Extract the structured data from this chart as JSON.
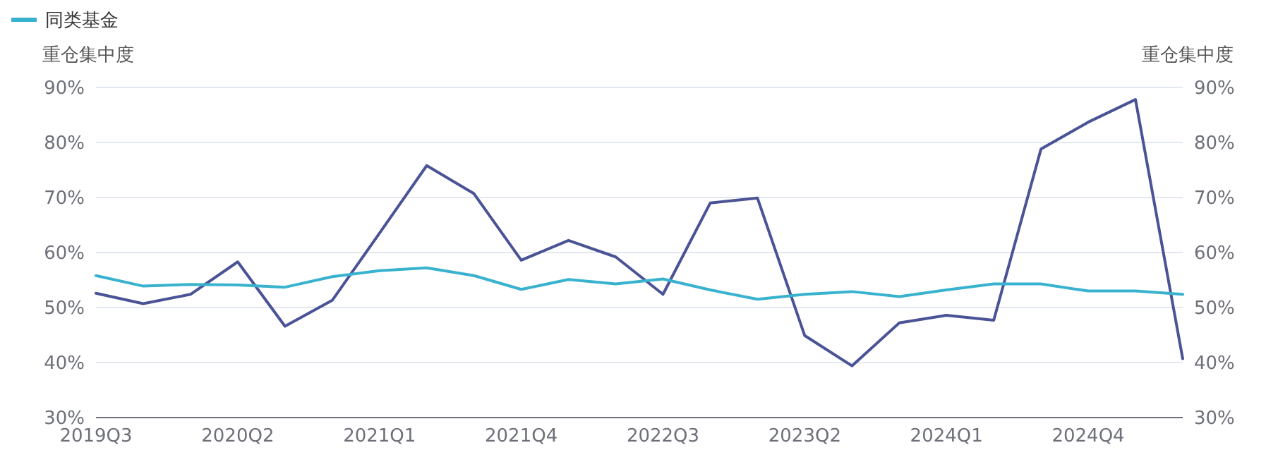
{
  "chart_data": {
    "type": "line",
    "ylabel": "重仓集中度",
    "y2label": "重仓集中度",
    "categories": [
      "2019Q3",
      null,
      null,
      "2020Q2",
      null,
      null,
      "2021Q1",
      null,
      null,
      "2021Q4",
      null,
      null,
      "2022Q3",
      null,
      null,
      "2023Q2",
      null,
      null,
      "2024Q1",
      null,
      null,
      "2024Q4",
      null,
      null
    ],
    "series": [
      {
        "color": "#4a5396",
        "values": [
          52.6,
          50.7,
          52.4,
          58.3,
          46.6,
          51.3,
          63.5,
          75.8,
          70.7,
          58.6,
          62.2,
          59.2,
          52.4,
          69.0,
          69.9,
          44.9,
          39.4,
          47.2,
          48.6,
          47.7,
          78.8,
          83.7,
          87.8,
          40.7
        ]
      },
      {
        "name": "同类基金",
        "color": "#38b2ce",
        "values": [
          55.8,
          53.9,
          54.2,
          54.1,
          53.7,
          55.6,
          56.7,
          57.2,
          55.8,
          53.3,
          55.1,
          54.3,
          55.2,
          53.2,
          51.5,
          52.4,
          52.9,
          52.0,
          53.2,
          54.3,
          54.3,
          53.0,
          53.0,
          52.4
        ]
      }
    ],
    "ylim": [
      30,
      90
    ],
    "yticks": [
      {
        "value": 30,
        "label": "30%"
      },
      {
        "value": 40,
        "label": "40%"
      },
      {
        "value": 50,
        "label": "50%"
      },
      {
        "value": 60,
        "label": "60%"
      },
      {
        "value": 70,
        "label": "70%"
      },
      {
        "value": 80,
        "label": "80%"
      },
      {
        "value": 90,
        "label": "90%"
      }
    ],
    "y2lim": [
      30,
      90
    ],
    "y2ticks": [
      {
        "value": 30,
        "label": "30%"
      },
      {
        "value": 40,
        "label": "40%"
      },
      {
        "value": 50,
        "label": "50%"
      },
      {
        "value": 60,
        "label": "60%"
      },
      {
        "value": 70,
        "label": "70%"
      },
      {
        "value": 80,
        "label": "80%"
      },
      {
        "value": 90,
        "label": "90%"
      }
    ],
    "grid": "y",
    "legend": "top left",
    "marker": "none",
    "line_style": "solid"
  }
}
